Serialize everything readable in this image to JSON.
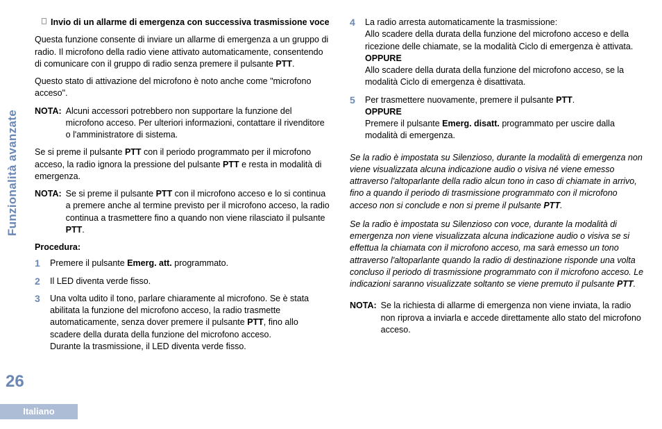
{
  "sidebar": {
    "label": "Funzionalità avanzate"
  },
  "pagenum": "26",
  "footer": {
    "lang": "Italiano"
  },
  "left": {
    "title": "Invio di un allarme di emergenza con successiva trasmissione voce",
    "p1a": "Questa funzione consente di inviare un allarme di emergenza a un gruppo di radio. Il microfono della radio viene attivato automaticamente, consentendo di comunicare con il gruppo di radio senza premere il pulsante ",
    "p1b": "PTT",
    "p1c": ".",
    "p2": "Questo stato di attivazione del microfono è noto anche come \"microfono acceso\".",
    "nota1_label": "NOTA:",
    "nota1": "Alcuni accessori potrebbero non supportare la funzione del microfono acceso. Per ulteriori informazioni, contattare il rivenditore o l'amministratore di sistema.",
    "p3a": "Se si preme il pulsante ",
    "p3b": "PTT",
    "p3c": " con il periodo programmato per il microfono acceso, la radio ignora la pressione del pulsante ",
    "p3d": "PTT",
    "p3e": " e resta in modalità di emergenza.",
    "nota2_label": "NOTA:",
    "nota2a": "Se si preme il pulsante ",
    "nota2b": "PTT",
    "nota2c": " con il microfono acceso e lo si continua a premere anche al termine previsto per il microfono acceso, la radio continua a trasmettere fino a quando non viene rilasciato il pulsante ",
    "nota2d": "PTT",
    "nota2e": ".",
    "proc": "Procedura:",
    "s1n": "1",
    "s1a": "Premere il pulsante ",
    "s1b": "Emerg. att.",
    "s1c": " programmato.",
    "s2n": "2",
    "s2": "Il LED diventa verde fisso.",
    "s3n": "3",
    "s3a": "Una volta udito il tono, parlare chiaramente al microfono. Se è stata abilitata la funzione del microfono acceso, la radio trasmette automaticamente, senza dover premere il pulsante ",
    "s3b": "PTT",
    "s3c": ", fino allo scadere della durata della funzione del microfono acceso.",
    "s3d": "Durante la trasmissione, il LED diventa verde fisso."
  },
  "right": {
    "s4n": "4",
    "s4a": "La radio arresta automaticamente la trasmissione:",
    "s4b": "Allo scadere della durata della funzione del microfono acceso e della ricezione delle chiamate, se la modalità Ciclo di emergenza è attivata.",
    "s4opp": "OPPURE",
    "s4c": "Allo scadere della durata della funzione del microfono acceso, se la modalità Ciclo di emergenza è disattivata.",
    "s5n": "5",
    "s5a": "Per trasmettere nuovamente, premere il pulsante ",
    "s5b": "PTT",
    "s5c": ".",
    "s5opp": "OPPURE",
    "s5d": "Premere il pulsante ",
    "s5e": "Emerg. disatt.",
    "s5f": " programmato per uscire dalla modalità di emergenza.",
    "it1a": "Se la radio è impostata su Silenzioso, durante la modalità di emergenza non viene visualizzata alcuna indicazione audio o visiva né viene emesso attraverso l'altoparlante della radio alcun tono in caso di chiamate in arrivo, fino a quando il periodo di trasmissione programmato con il microfono acceso non si conclude e non si preme il pulsante ",
    "it1b": "PTT",
    "it1c": ".",
    "it2a": "Se la radio è impostata su Silenzioso con voce, durante la modalità di emergenza non viene visualizzata alcuna indicazione audio o visiva se si effettua la chiamata con il microfono acceso, ma sarà emesso un tono attraverso l'altoparlante quando la radio di destinazione risponde una volta concluso il periodo di trasmissione programmato con il microfono acceso. Le indicazioni saranno visualizzate soltanto se viene premuto il pulsante ",
    "it2b": "PTT",
    "it2c": ".",
    "nota3_label": "NOTA:",
    "nota3": "Se la richiesta di allarme di emergenza non viene inviata, la radio non riprova a inviarla e accede direttamente allo stato del microfono acceso."
  }
}
